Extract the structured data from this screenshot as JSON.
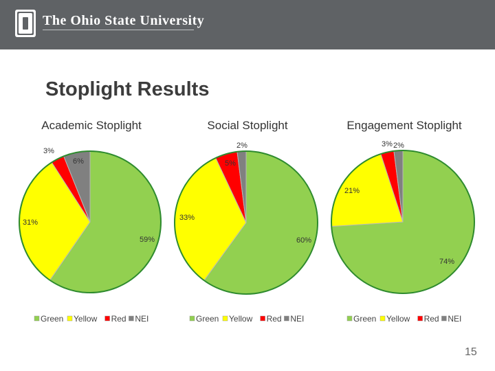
{
  "header": {
    "university_name": "The Ohio State University",
    "logo_letter": "O",
    "background_color": "#5f6265"
  },
  "slide": {
    "title": "Stoplight Results",
    "page_number": "15"
  },
  "chart_data": [
    {
      "type": "pie",
      "title": "Academic Stoplight",
      "categories": [
        "Green",
        "Yellow",
        "Red",
        "NEI"
      ],
      "values": [
        59,
        31,
        3,
        6
      ],
      "data_labels": [
        "59%",
        "31%",
        "3%",
        "6%"
      ],
      "colors": [
        "#92d050",
        "#ffff00",
        "#ff0000",
        "#808080"
      ],
      "legend": {
        "position": "bottom",
        "entries": [
          "Green",
          "Yellow",
          "Red",
          "NEI"
        ]
      }
    },
    {
      "type": "pie",
      "title": "Social Stoplight",
      "categories": [
        "Green",
        "Yellow",
        "Red",
        "NEI"
      ],
      "values": [
        60,
        33,
        5,
        2
      ],
      "data_labels": [
        "60%",
        "33%",
        "5%",
        "2%"
      ],
      "colors": [
        "#92d050",
        "#ffff00",
        "#ff0000",
        "#808080"
      ],
      "legend": {
        "position": "bottom",
        "entries": [
          "Green",
          "Yellow",
          "Red",
          "NEI"
        ]
      }
    },
    {
      "type": "pie",
      "title": "Engagement Stoplight",
      "categories": [
        "Green",
        "Yellow",
        "Red",
        "NEI"
      ],
      "values": [
        74,
        21,
        3,
        2
      ],
      "data_labels": [
        "74%",
        "21%",
        "3%",
        "2%"
      ],
      "colors": [
        "#92d050",
        "#ffff00",
        "#ff0000",
        "#808080"
      ],
      "legend": {
        "position": "bottom",
        "entries": [
          "Green",
          "Yellow",
          "Red",
          "NEI"
        ]
      }
    }
  ]
}
